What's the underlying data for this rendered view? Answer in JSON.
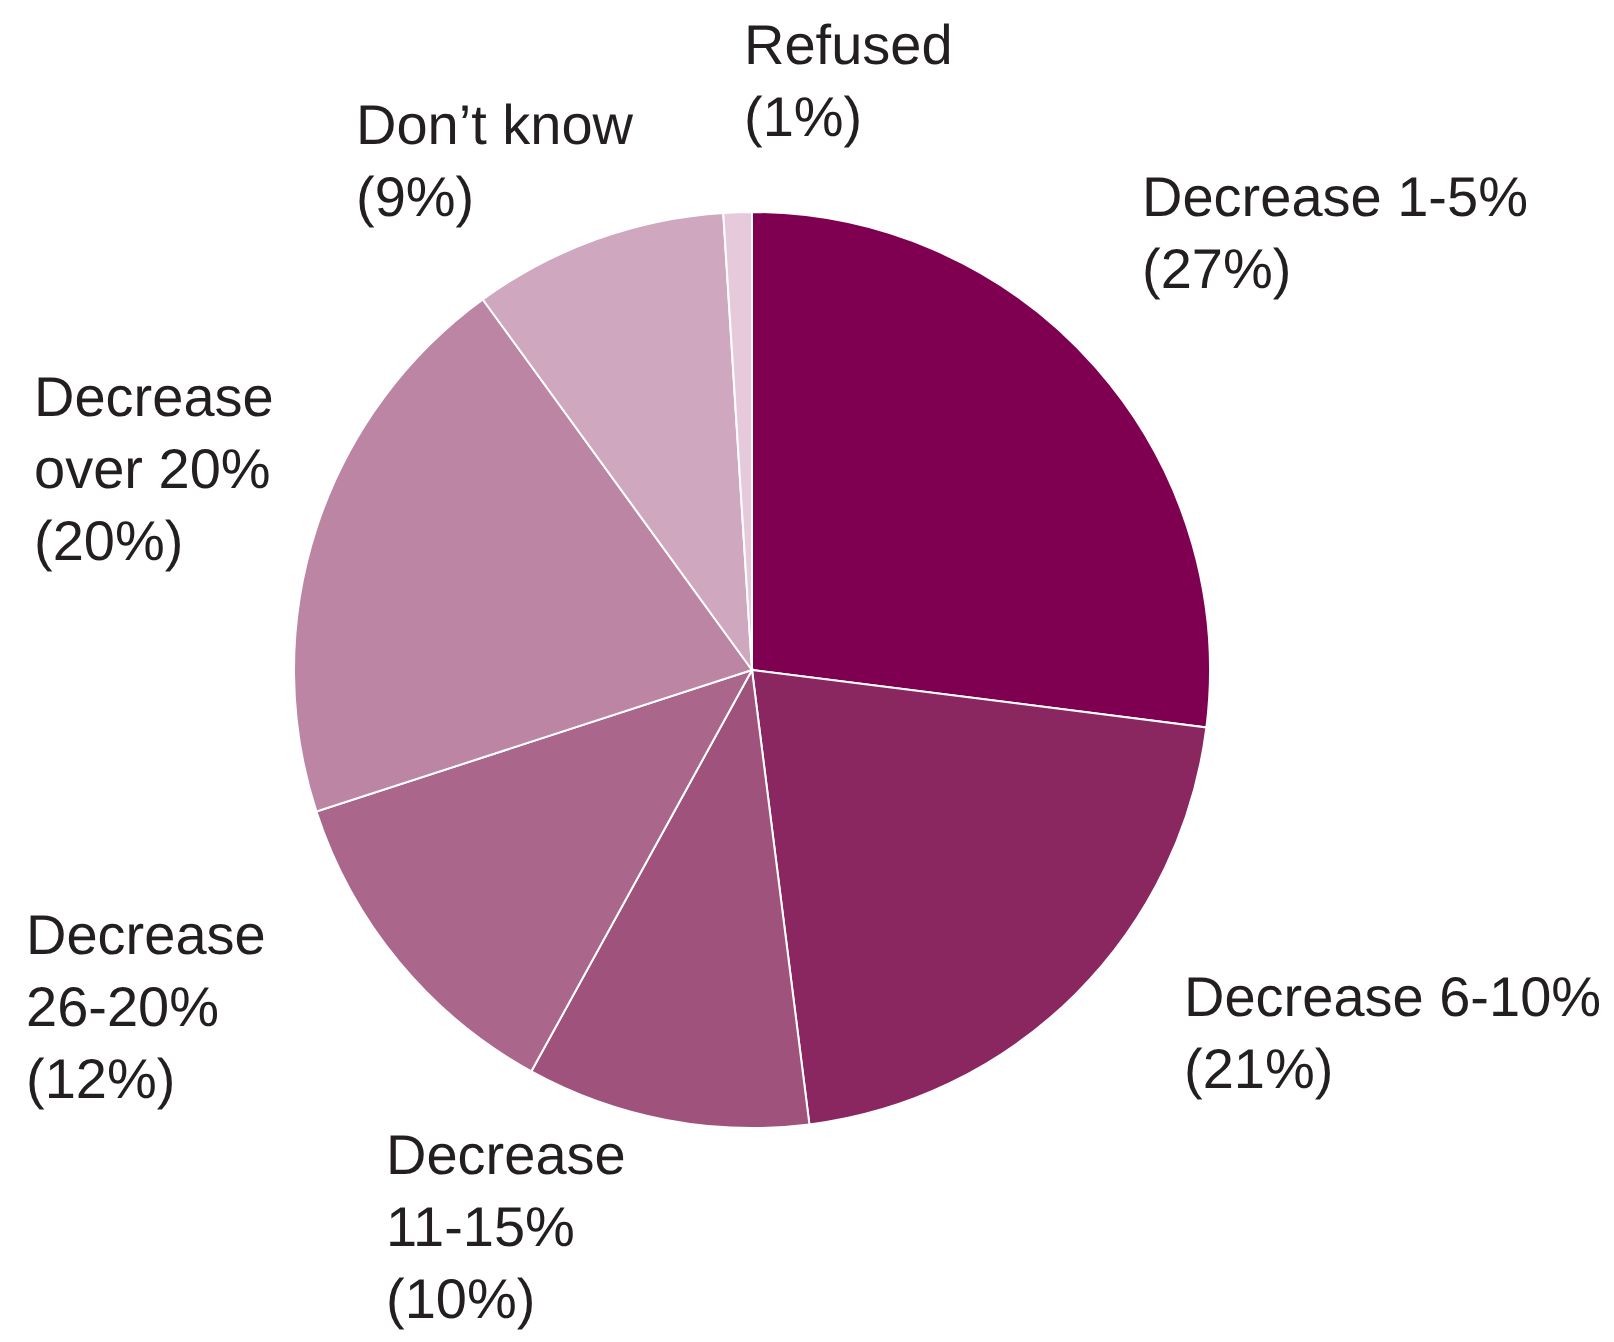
{
  "chart_data": {
    "type": "pie",
    "categories": [
      "Decrease 1-5%",
      "Decrease 6-10%",
      "Decrease 11-15%",
      "Decrease 26-20%",
      "Decrease over 20%",
      "Don’t know",
      "Refused"
    ],
    "values": [
      27,
      21,
      10,
      12,
      20,
      9,
      1
    ],
    "colors": [
      "#7f0050",
      "#8a2660",
      "#9e527c",
      "#aa668b",
      "#bb85a3",
      "#cfa7bf",
      "#e6cadb"
    ],
    "value_labels": [
      "(27%)",
      "(21%)",
      "(10%)",
      "(12%)",
      "(20%)",
      "(9%)",
      "(1%)"
    ]
  }
}
